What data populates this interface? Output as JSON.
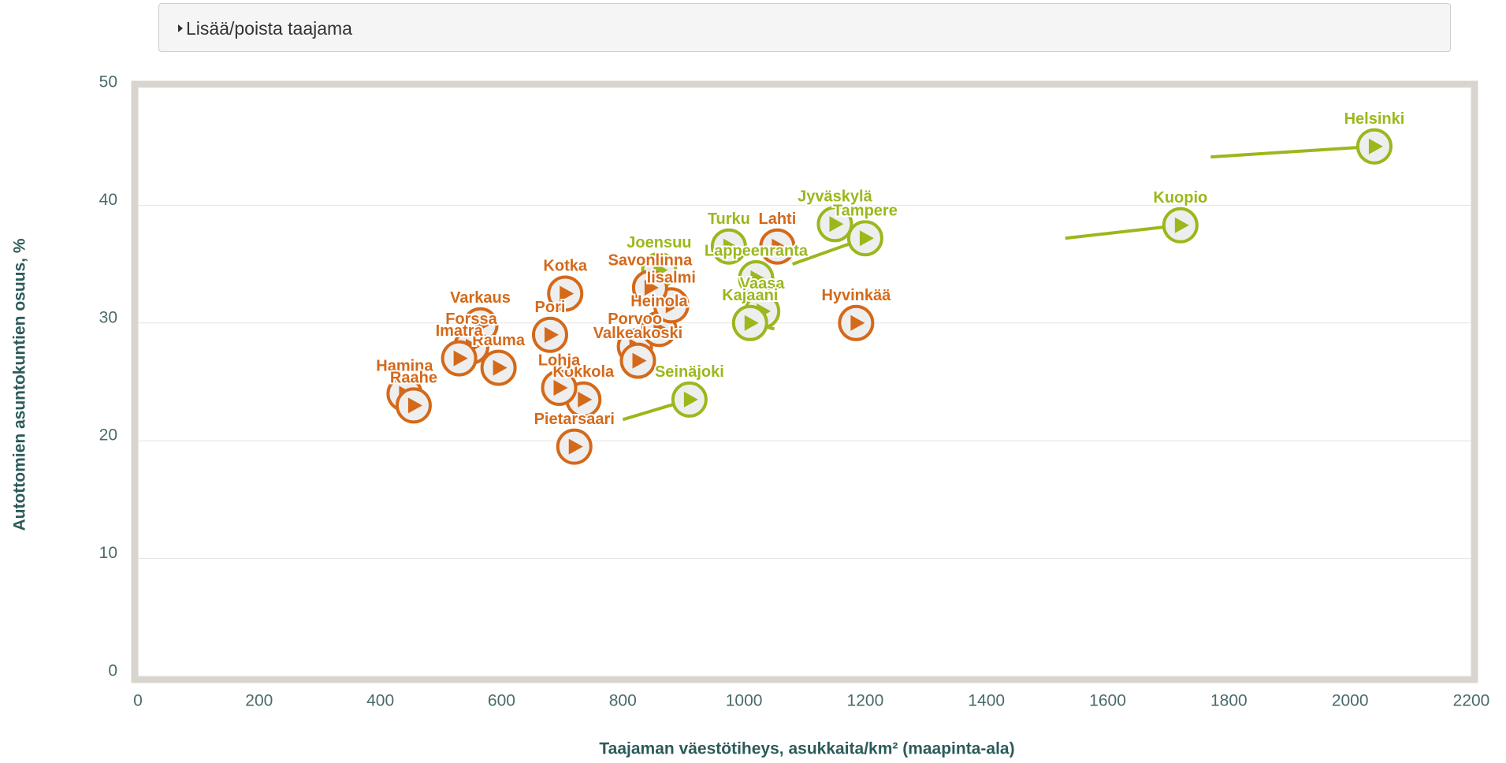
{
  "header": {
    "toggle": "Lisää/poista taajama"
  },
  "chart_data": {
    "type": "scatter",
    "xlabel": "Taajaman väestötiheys, asukkaita/km² (maapinta-ala)",
    "ylabel": "Autottomien asuntokuntien osuus, %",
    "xlim": [
      0,
      2200
    ],
    "xticks": [
      0,
      200,
      400,
      600,
      800,
      1000,
      1200,
      1400,
      1600,
      1800,
      2000,
      2200
    ],
    "ylim": [
      0,
      50
    ],
    "yticks": [
      0,
      10,
      20,
      30,
      40,
      50
    ],
    "grid": true,
    "series": [
      {
        "color": "#9ab81c",
        "names": [
          "Helsinki",
          "Kuopio",
          "Tampere",
          "Jyväskylä",
          "Turku",
          "Joensuu",
          "Lappeenranta",
          "Vaasa",
          "Kajaani",
          "Seinäjoki"
        ],
        "x": [
          2040,
          1720,
          1200,
          1150,
          975,
          860,
          1020,
          1030,
          1010,
          910
        ],
        "y": [
          45,
          38.3,
          37.2,
          38.4,
          36.5,
          34.5,
          33.8,
          31,
          30,
          23.5
        ],
        "from_x": [
          1770,
          1530,
          1080,
          null,
          null,
          null,
          null,
          null,
          1050,
          800
        ],
        "from_y": [
          44.1,
          37.2,
          35,
          null,
          null,
          null,
          null,
          null,
          29.5,
          21.8
        ]
      },
      {
        "color": "#d4691a",
        "names": [
          "Lahti",
          "Hyvinkää",
          "Kotka",
          "Varkaus",
          "Forssa",
          "Rauma",
          "Imatra",
          "Hamina",
          "Raahe",
          "Pori",
          "Kokkola",
          "Lohja",
          "Pietarsaari",
          "Porvoo",
          "Valkeakoski",
          "Heinola",
          "Iisalmi",
          "Savonlinna"
        ],
        "x": [
          1055,
          1185,
          705,
          565,
          550,
          595,
          530,
          440,
          455,
          680,
          735,
          695,
          720,
          820,
          825,
          860,
          880,
          845
        ],
        "y": [
          36.5,
          30,
          32.5,
          29.8,
          28,
          26.2,
          27,
          24,
          23,
          29,
          23.5,
          24.5,
          19.5,
          28,
          26.8,
          29.5,
          31.5,
          33
        ],
        "from_x": [
          null,
          null,
          null,
          null,
          null,
          null,
          null,
          null,
          null,
          null,
          null,
          null,
          null,
          null,
          null,
          null,
          null,
          null
        ],
        "from_y": [
          null,
          null,
          null,
          null,
          null,
          null,
          null,
          null,
          null,
          null,
          null,
          null,
          null,
          null,
          null,
          null,
          null,
          null
        ]
      }
    ]
  }
}
